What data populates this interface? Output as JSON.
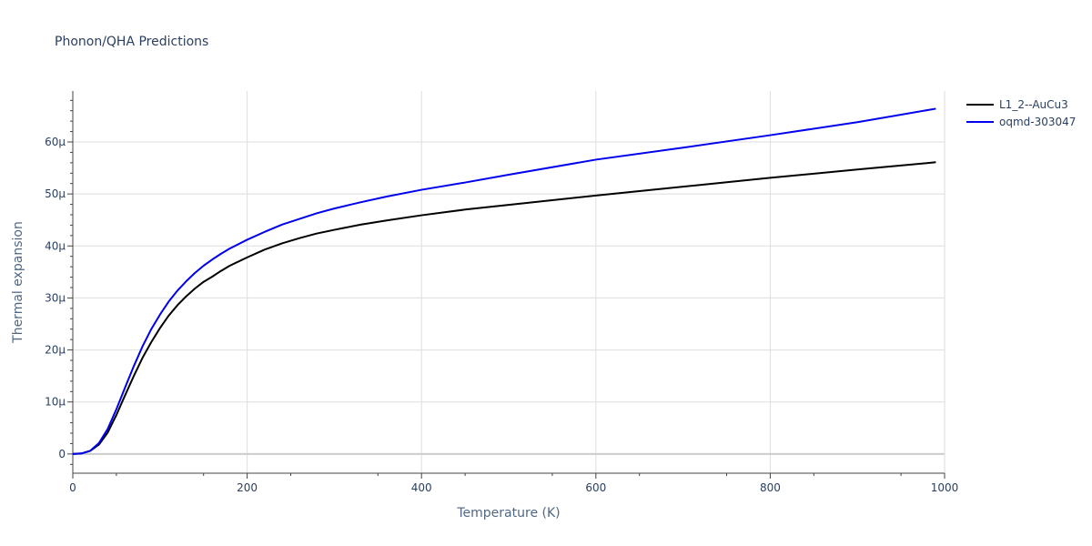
{
  "chart_data": {
    "type": "line",
    "title": "Phonon/QHA Predictions",
    "xlabel": "Temperature (K)",
    "ylabel": "Thermal expansion",
    "xlim": [
      0,
      1000
    ],
    "ylim": [
      -3.7e-06,
      6.98e-05
    ],
    "x_ticks": [
      0,
      200,
      400,
      600,
      800,
      1000
    ],
    "x_tick_labels": [
      "0",
      "200",
      "400",
      "600",
      "800",
      "1000"
    ],
    "y_ticks": [
      0,
      1e-05,
      2e-05,
      3e-05,
      4e-05,
      5e-05,
      6e-05
    ],
    "y_tick_labels": [
      "0",
      "10μ",
      "20μ",
      "30μ",
      "40μ",
      "50μ",
      "60μ"
    ],
    "grid": true,
    "legend_position": "top-right",
    "series": [
      {
        "name": "L1_2--AuCu3",
        "color": "#000000",
        "x": [
          0,
          10,
          20,
          30,
          40,
          50,
          60,
          70,
          80,
          90,
          100,
          110,
          120,
          130,
          140,
          150,
          160,
          170,
          180,
          200,
          220,
          240,
          260,
          280,
          300,
          330,
          360,
          400,
          450,
          500,
          600,
          700,
          800,
          900,
          990
        ],
        "y": [
          0,
          1e-07,
          6e-07,
          1.8e-06,
          4.1e-06,
          7.5e-06,
          1.13e-05,
          1.5e-05,
          1.85e-05,
          2.15e-05,
          2.42e-05,
          2.66e-05,
          2.86e-05,
          3.03e-05,
          3.18e-05,
          3.31e-05,
          3.41e-05,
          3.52e-05,
          3.62e-05,
          3.78e-05,
          3.93e-05,
          4.05e-05,
          4.15e-05,
          4.24e-05,
          4.31e-05,
          4.41e-05,
          4.49e-05,
          4.59e-05,
          4.7e-05,
          4.79e-05,
          4.97e-05,
          5.14e-05,
          5.31e-05,
          5.47e-05,
          5.61e-05
        ]
      },
      {
        "name": "oqmd-303047",
        "color": "#0000ee",
        "x": [
          0,
          10,
          20,
          30,
          40,
          50,
          60,
          70,
          80,
          90,
          100,
          110,
          120,
          130,
          140,
          150,
          160,
          170,
          180,
          200,
          220,
          240,
          260,
          280,
          300,
          330,
          360,
          400,
          450,
          500,
          600,
          700,
          800,
          900,
          990
        ],
        "y": [
          0,
          1e-07,
          6e-07,
          2.1e-06,
          4.8e-06,
          8.6e-06,
          1.28e-05,
          1.69e-05,
          2.07e-05,
          2.4e-05,
          2.68e-05,
          2.93e-05,
          3.14e-05,
          3.32e-05,
          3.48e-05,
          3.62e-05,
          3.74e-05,
          3.85e-05,
          3.95e-05,
          4.12e-05,
          4.27e-05,
          4.41e-05,
          4.52e-05,
          4.63e-05,
          4.72e-05,
          4.84e-05,
          4.95e-05,
          5.08e-05,
          5.22e-05,
          5.37e-05,
          5.66e-05,
          5.89e-05,
          6.13e-05,
          6.38e-05,
          6.64e-05
        ]
      }
    ]
  }
}
